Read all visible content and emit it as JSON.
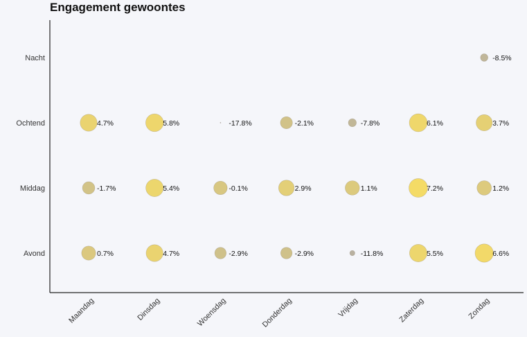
{
  "chart_data": {
    "type": "scatter",
    "title": "Engagement gewoontes",
    "xlabel": "",
    "ylabel": "",
    "grid": false,
    "x_categories": [
      "Maandag",
      "Dinsdag",
      "Woensdag",
      "Donderdag",
      "Vrijdag",
      "Zaterdag",
      "Zondag"
    ],
    "y_categories": [
      "Nacht",
      "Ochtend",
      "Middag",
      "Avond"
    ],
    "size_range": [
      -17.8,
      8.5
    ],
    "colors": {
      "low": "#a8a29a",
      "high": "#fadb4b",
      "axis": "#222222",
      "background": "#f5f6fa"
    },
    "points": [
      {
        "day": "Zondag",
        "time": "Nacht",
        "value": -8.5,
        "label": "-8.5%"
      },
      {
        "day": "Maandag",
        "time": "Ochtend",
        "value": 4.7,
        "label": "4.7%"
      },
      {
        "day": "Dinsdag",
        "time": "Ochtend",
        "value": 5.8,
        "label": "5.8%"
      },
      {
        "day": "Woensdag",
        "time": "Ochtend",
        "value": -17.8,
        "label": "-17.8%"
      },
      {
        "day": "Donderdag",
        "time": "Ochtend",
        "value": -2.1,
        "label": "-2.1%"
      },
      {
        "day": "Vrijdag",
        "time": "Ochtend",
        "value": -7.8,
        "label": "-7.8%"
      },
      {
        "day": "Zaterdag",
        "time": "Ochtend",
        "value": 6.1,
        "label": "6.1%"
      },
      {
        "day": "Zondag",
        "time": "Ochtend",
        "value": 3.7,
        "label": "3.7%"
      },
      {
        "day": "Maandag",
        "time": "Middag",
        "value": -1.7,
        "label": "-1.7%"
      },
      {
        "day": "Dinsdag",
        "time": "Middag",
        "value": 5.4,
        "label": "5.4%"
      },
      {
        "day": "Woensdag",
        "time": "Middag",
        "value": -0.1,
        "label": "-0.1%"
      },
      {
        "day": "Donderdag",
        "time": "Middag",
        "value": 2.9,
        "label": "2.9%"
      },
      {
        "day": "Vrijdag",
        "time": "Middag",
        "value": 1.1,
        "label": "1.1%"
      },
      {
        "day": "Zaterdag",
        "time": "Middag",
        "value": 7.2,
        "label": "7.2%"
      },
      {
        "day": "Zondag",
        "time": "Middag",
        "value": 1.2,
        "label": "1.2%"
      },
      {
        "day": "Maandag",
        "time": "Avond",
        "value": 0.7,
        "label": "0.7%"
      },
      {
        "day": "Dinsdag",
        "time": "Avond",
        "value": 4.7,
        "label": "4.7%"
      },
      {
        "day": "Woensdag",
        "time": "Avond",
        "value": -2.9,
        "label": "-2.9%"
      },
      {
        "day": "Donderdag",
        "time": "Avond",
        "value": -2.9,
        "label": "-2.9%"
      },
      {
        "day": "Vrijdag",
        "time": "Avond",
        "value": -11.8,
        "label": "-11.8%"
      },
      {
        "day": "Zaterdag",
        "time": "Avond",
        "value": 5.5,
        "label": "5.5%"
      },
      {
        "day": "Zondag",
        "time": "Avond",
        "value": 6.6,
        "label": "6.6%"
      }
    ]
  }
}
